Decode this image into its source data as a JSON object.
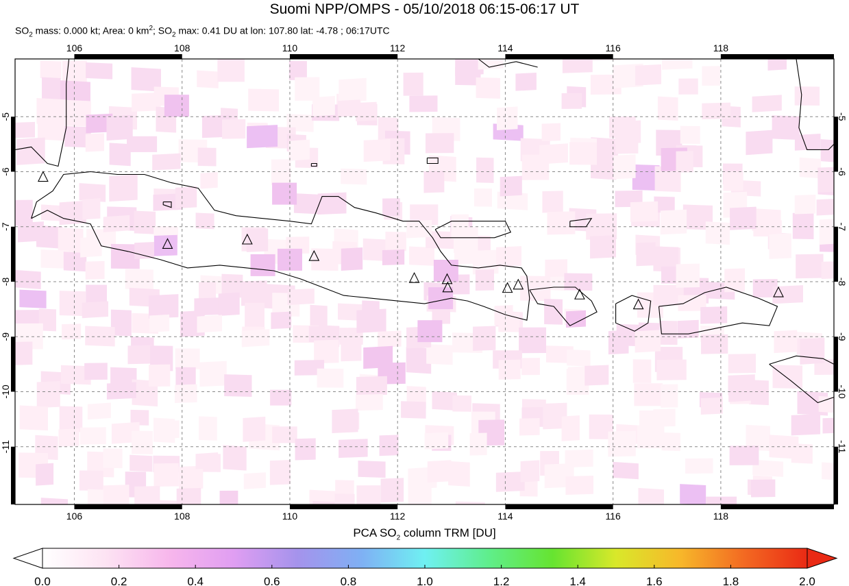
{
  "title": "Suomi NPP/OMPS - 05/10/2018 06:15-06:17 UT",
  "subtitle": {
    "so2_prefix": "SO",
    "mass_text": " mass: 0.000 kt; Area: 0 km",
    "area_sup": "2",
    "max_prefix": "; SO",
    "max_text": " max: 0.41 DU at lon: 107.80 lat: -4.78 ; 06:17UTC",
    "sub2": "2"
  },
  "map": {
    "lon_range": [
      104.9,
      120.1
    ],
    "lat_range": [
      -12.05,
      -3.95
    ],
    "lon_ticks": [
      "106",
      "108",
      "110",
      "112",
      "114",
      "116",
      "118"
    ],
    "lat_ticks": [
      "-5",
      "-6",
      "-7",
      "-8",
      "-9",
      "-10",
      "-11"
    ],
    "volcano_markers": [
      [
        105.42,
        -6.1
      ],
      [
        107.73,
        -7.32
      ],
      [
        109.21,
        -7.24
      ],
      [
        110.45,
        -7.54
      ],
      [
        112.31,
        -7.94
      ],
      [
        112.92,
        -7.96
      ],
      [
        112.93,
        -8.11
      ],
      [
        114.04,
        -8.12
      ],
      [
        114.24,
        -8.06
      ],
      [
        115.38,
        -8.24
      ],
      [
        116.47,
        -8.42
      ],
      [
        119.07,
        -8.2
      ]
    ],
    "colors": {
      "coast": "#000000",
      "grid": "#888888",
      "frame": "#000000",
      "marker": "#000000"
    }
  },
  "colorbar": {
    "label_prefix": "PCA SO",
    "label_sub": "2",
    "label_suffix": " column TRM [DU]",
    "ticks": [
      "0.0",
      "0.2",
      "0.4",
      "0.6",
      "0.8",
      "1.0",
      "1.2",
      "1.4",
      "1.6",
      "1.8",
      "2.0"
    ],
    "range": [
      0.0,
      2.0
    ],
    "colors": [
      "#ffffff",
      "#fde3f3",
      "#f7b6ec",
      "#e09ef2",
      "#a593ec",
      "#7fb0f4",
      "#6ff0f2",
      "#5fee8c",
      "#66e430",
      "#d9e82a",
      "#f7b82a",
      "#f36a22",
      "#ea2a14"
    ]
  }
}
